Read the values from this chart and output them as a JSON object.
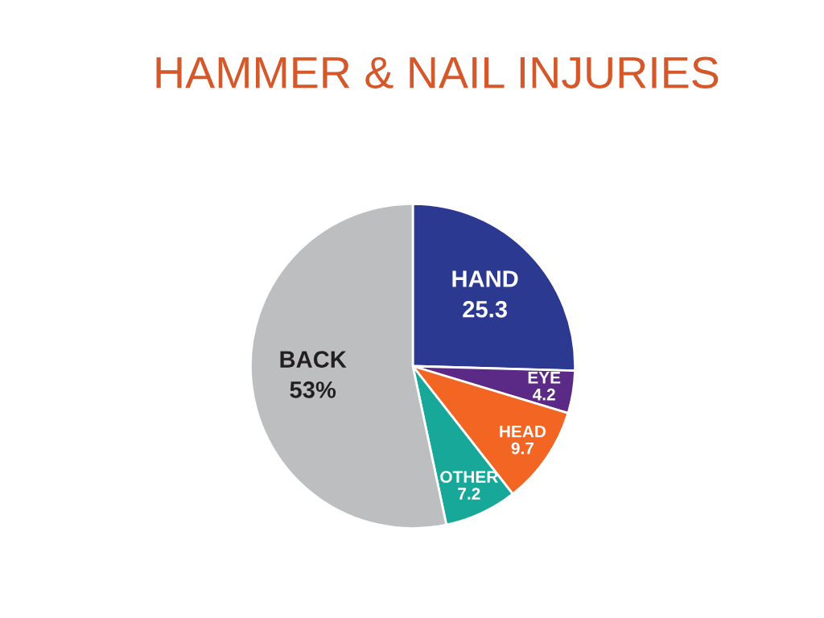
{
  "chart_data": {
    "type": "pie",
    "title": "HAMMER & NAIL INJURIES",
    "categories": [
      "HAND",
      "EYE",
      "HEAD",
      "OTHER",
      "BACK"
    ],
    "values": [
      25.3,
      4.2,
      9.7,
      7.2,
      53
    ],
    "value_labels": [
      "25.3",
      "4.2",
      "9.7",
      "7.2",
      "53%"
    ],
    "colors": [
      "#2b3990",
      "#5b2a86",
      "#f26522",
      "#17a89a",
      "#bcbec0"
    ]
  }
}
